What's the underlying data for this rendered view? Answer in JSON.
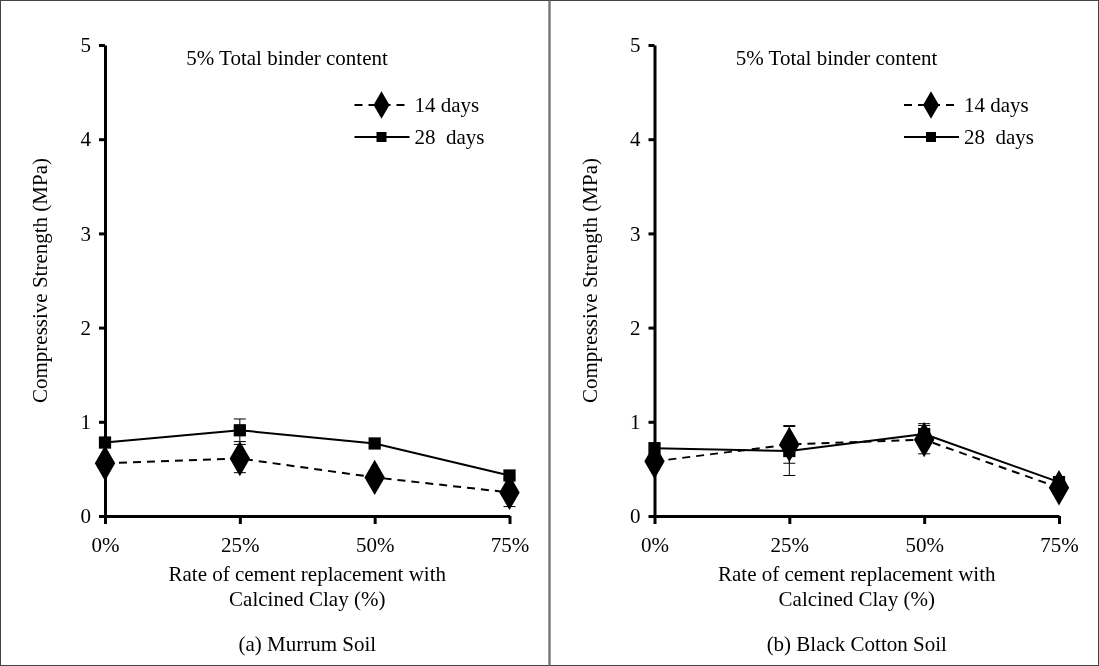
{
  "chart_data": [
    {
      "type": "line",
      "title": "5% Total binder content",
      "xlabel": "Rate of cement replacement with Calcined Clay (%)",
      "ylabel": "Compressive Strength (MPa)",
      "annotations": [
        "(a) Murrum Soil"
      ],
      "categories": [
        "0%",
        "25%",
        "50%",
        "75%"
      ],
      "ylim": [
        0,
        5
      ],
      "yticks": [
        0,
        1,
        2,
        3,
        4,
        5
      ],
      "legend": "top right",
      "grid": false,
      "series": [
        {
          "name": "14 days",
          "color": "#000000",
          "marker": "diamond",
          "line_style": "dashed",
          "values": [
            0.56,
            0.61,
            0.41,
            0.25
          ],
          "errors": [
            null,
            0.15,
            null,
            0.15
          ]
        },
        {
          "name": "28  days",
          "color": "#000000",
          "marker": "square",
          "line_style": "solid",
          "values": [
            0.78,
            0.91,
            0.77,
            0.43
          ],
          "errors": [
            null,
            0.12,
            null,
            null
          ]
        }
      ]
    },
    {
      "type": "line",
      "title": "5% Total binder content",
      "xlabel": "Rate of cement replacement with Calcined Clay (%)",
      "ylabel": "Compressive Strength (MPa)",
      "annotations": [
        "(b) Black Cotton Soil"
      ],
      "categories": [
        "0%",
        "25%",
        "50%",
        "75%"
      ],
      "ylim": [
        0,
        5
      ],
      "yticks": [
        0,
        1,
        2,
        3,
        4,
        5
      ],
      "legend": "top right",
      "grid": false,
      "series": [
        {
          "name": "14 days",
          "color": "#000000",
          "marker": "diamond",
          "line_style": "dashed",
          "values": [
            0.58,
            0.76,
            0.81,
            0.3
          ],
          "errors": [
            null,
            0.2,
            0.15,
            null
          ]
        },
        {
          "name": "28  days",
          "color": "#000000",
          "marker": "square",
          "line_style": "solid",
          "values": [
            0.72,
            0.69,
            0.87,
            0.36
          ],
          "errors": [
            null,
            0.26,
            0.11,
            null
          ]
        }
      ]
    }
  ]
}
